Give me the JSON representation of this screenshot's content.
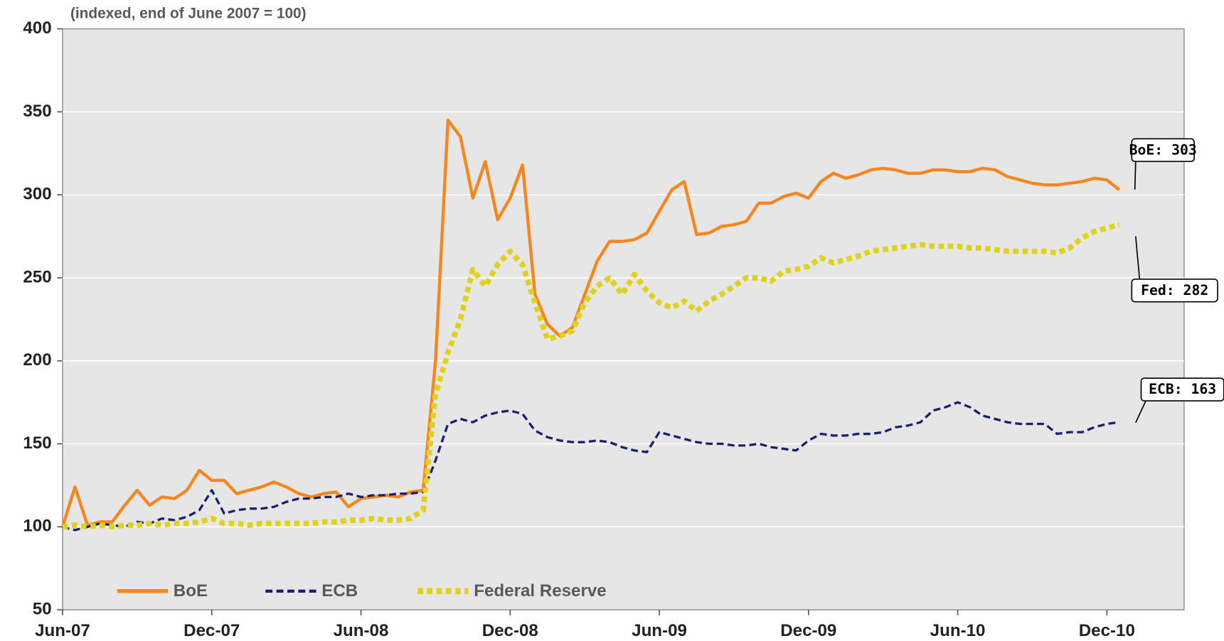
{
  "chart_data": {
    "type": "line",
    "subtitle": "(indexed, end of June 2007 = 100)",
    "categories": [
      "Jun-07",
      null,
      null,
      null,
      null,
      null,
      null,
      null,
      null,
      null,
      null,
      null,
      "Dec-07",
      null,
      null,
      null,
      null,
      null,
      null,
      null,
      null,
      null,
      null,
      null,
      "Jun-08",
      null,
      null,
      null,
      null,
      null,
      null,
      null,
      null,
      null,
      null,
      null,
      "Dec-08",
      null,
      null,
      null,
      null,
      null,
      null,
      null,
      null,
      null,
      null,
      null,
      "Jun-09",
      null,
      null,
      null,
      null,
      null,
      null,
      null,
      null,
      null,
      null,
      null,
      "Dec-09",
      null,
      null,
      null,
      null,
      null,
      null,
      null,
      null,
      null,
      null,
      null,
      "Jun-10",
      null,
      null,
      null,
      null,
      null,
      null,
      null,
      null,
      null,
      null,
      null,
      "Dec-10",
      null
    ],
    "series": [
      {
        "name": "BoE",
        "color": "#f7861c",
        "values": [
          100,
          124,
          101,
          103,
          103,
          113,
          122,
          113,
          118,
          117,
          122,
          134,
          128,
          128,
          120,
          122,
          124,
          127,
          124,
          120,
          118,
          120,
          121,
          112,
          117,
          118,
          119,
          118,
          121,
          122,
          200,
          345,
          335,
          298,
          320,
          285,
          298,
          318,
          240,
          222,
          215,
          220,
          240,
          260,
          272,
          272,
          273,
          277,
          290,
          303,
          308,
          276,
          277,
          281,
          282,
          284,
          295,
          295,
          299,
          301,
          298,
          308,
          313,
          310,
          312,
          315,
          316,
          315,
          313,
          313,
          315,
          315,
          314,
          314,
          316,
          315,
          311,
          309,
          307,
          306,
          306,
          307,
          308,
          310,
          309,
          303
        ]
      },
      {
        "name": "ECB",
        "color": "#1a1f6e",
        "values": [
          100,
          98,
          100,
          102,
          101,
          100,
          103,
          102,
          105,
          104,
          106,
          110,
          122,
          108,
          110,
          111,
          111,
          112,
          115,
          117,
          117,
          118,
          118,
          120,
          118,
          119,
          119,
          120,
          120,
          121,
          140,
          162,
          165,
          163,
          167,
          169,
          170,
          168,
          158,
          154,
          152,
          151,
          151,
          152,
          151,
          148,
          146,
          145,
          157,
          155,
          153,
          151,
          150,
          150,
          149,
          149,
          150,
          148,
          147,
          146,
          152,
          156,
          155,
          155,
          156,
          156,
          157,
          160,
          161,
          163,
          170,
          172,
          175,
          172,
          167,
          165,
          163,
          162,
          162,
          162,
          156,
          157,
          157,
          160,
          162,
          163
        ]
      },
      {
        "name": "Federal Reserve",
        "color": "#e0d21c",
        "values": [
          100,
          101,
          100,
          101,
          100,
          101,
          101,
          102,
          101,
          102,
          102,
          103,
          105,
          102,
          102,
          101,
          102,
          102,
          102,
          102,
          102,
          103,
          103,
          104,
          104,
          105,
          104,
          104,
          105,
          110,
          180,
          205,
          225,
          255,
          245,
          258,
          266,
          258,
          235,
          213,
          215,
          218,
          235,
          245,
          250,
          240,
          252,
          242,
          235,
          232,
          236,
          230,
          236,
          240,
          245,
          250,
          250,
          248,
          254,
          255,
          257,
          262,
          259,
          261,
          263,
          266,
          267,
          268,
          269,
          270,
          269,
          269,
          269,
          268,
          268,
          267,
          266,
          266,
          266,
          266,
          265,
          268,
          274,
          278,
          280,
          282
        ]
      }
    ],
    "annotations": [
      "BoE: 303",
      "Fed: 282",
      "ECB: 163"
    ],
    "ylim": [
      50,
      400
    ],
    "yticks": [
      50,
      100,
      150,
      200,
      250,
      300,
      350,
      400
    ],
    "grid": true,
    "legend": "bottom-left"
  }
}
